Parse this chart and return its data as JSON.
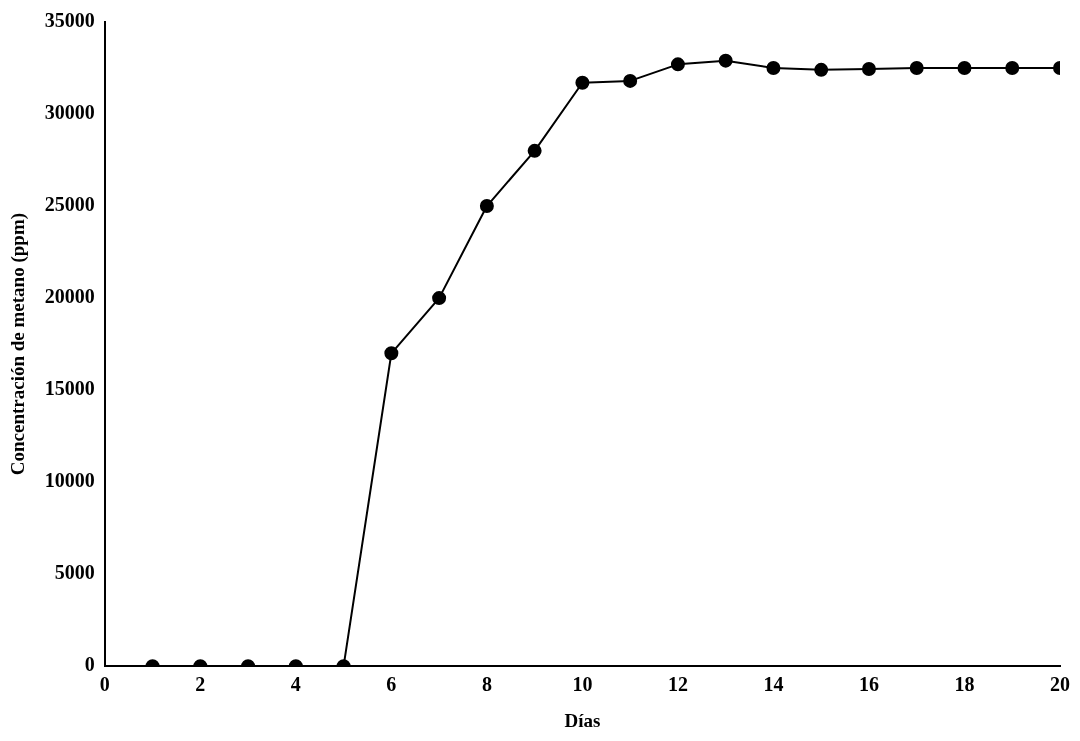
{
  "chart_data": {
    "type": "line",
    "xlabel": "Días",
    "ylabel": "Concentración de metano (ppm)",
    "x": [
      1,
      2,
      3,
      4,
      5,
      6,
      7,
      8,
      9,
      10,
      11,
      12,
      13,
      14,
      15,
      16,
      17,
      18,
      19,
      20
    ],
    "series": [
      {
        "color": "#000000",
        "values": [
          0,
          0,
          0,
          0,
          0,
          17000,
          20000,
          25000,
          28000,
          31700,
          31800,
          32700,
          32900,
          32500,
          32400,
          32450,
          32500,
          32500,
          32500,
          32500
        ]
      }
    ],
    "xlim": [
      0,
      20
    ],
    "xticks": [
      0,
      2,
      4,
      6,
      8,
      10,
      12,
      14,
      16,
      18,
      20
    ],
    "ylim": [
      0,
      35000
    ],
    "yticks": [
      0,
      5000,
      10000,
      15000,
      20000,
      25000,
      30000,
      35000
    ],
    "grid": false,
    "legend": false,
    "marker": "circle",
    "line_style": "solid"
  }
}
